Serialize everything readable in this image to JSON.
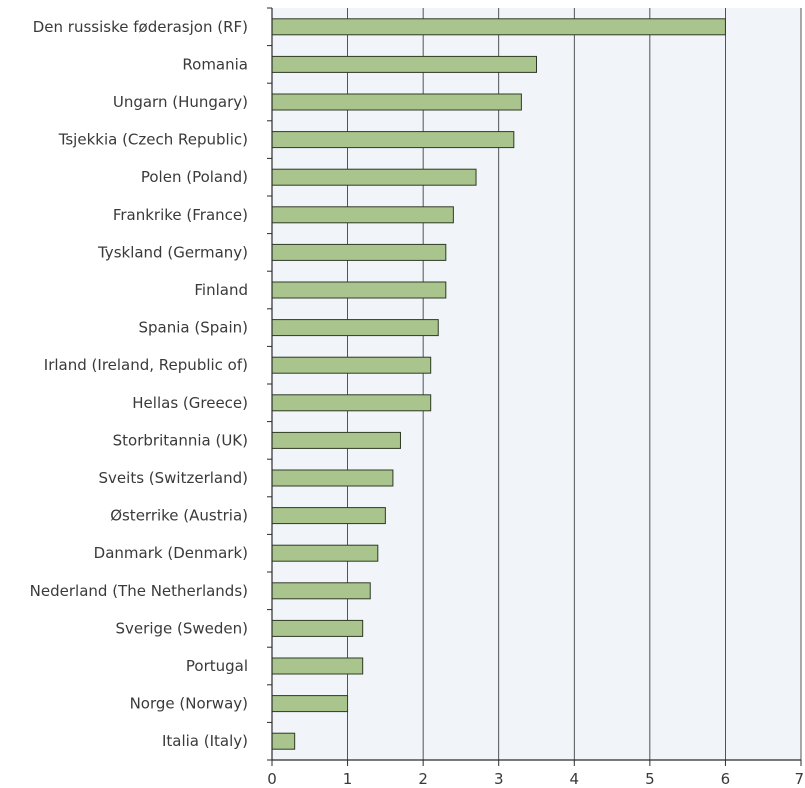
{
  "chart_data": {
    "type": "bar",
    "orientation": "horizontal",
    "categories": [
      "Den russiske føderasjon (RF)",
      "Romania",
      "Ungarn (Hungary)",
      "Tsjekkia (Czech Republic)",
      "Polen (Poland)",
      "Frankrike (France)",
      "Tyskland (Germany)",
      "Finland",
      "Spania (Spain)",
      "Irland (Ireland, Republic of)",
      "Hellas (Greece)",
      "Storbritannia (UK)",
      "Sveits (Switzerland)",
      "Østerrike (Austria)",
      "Danmark (Denmark)",
      "Nederland (The Netherlands)",
      "Sverige (Sweden)",
      "Portugal",
      "Norge (Norway)",
      "Italia (Italy)"
    ],
    "values": [
      6.0,
      3.5,
      3.3,
      3.2,
      2.7,
      2.4,
      2.3,
      2.3,
      2.2,
      2.1,
      2.1,
      1.7,
      1.6,
      1.5,
      1.4,
      1.3,
      1.2,
      1.2,
      1.0,
      0.3
    ],
    "xlim": [
      0,
      7
    ],
    "xticks": [
      "0",
      "1",
      "2",
      "3",
      "4",
      "5",
      "6",
      "7"
    ],
    "title": "",
    "xlabel": "",
    "ylabel": "",
    "grid": "vertical",
    "legend": "none",
    "colors": {
      "bar_fill": "#a9c58d",
      "bar_stroke": "#2f3a25",
      "plot_background": "#f1f5f9",
      "gridline": "#2b2b2b",
      "axis": "#2b2b2b"
    }
  }
}
